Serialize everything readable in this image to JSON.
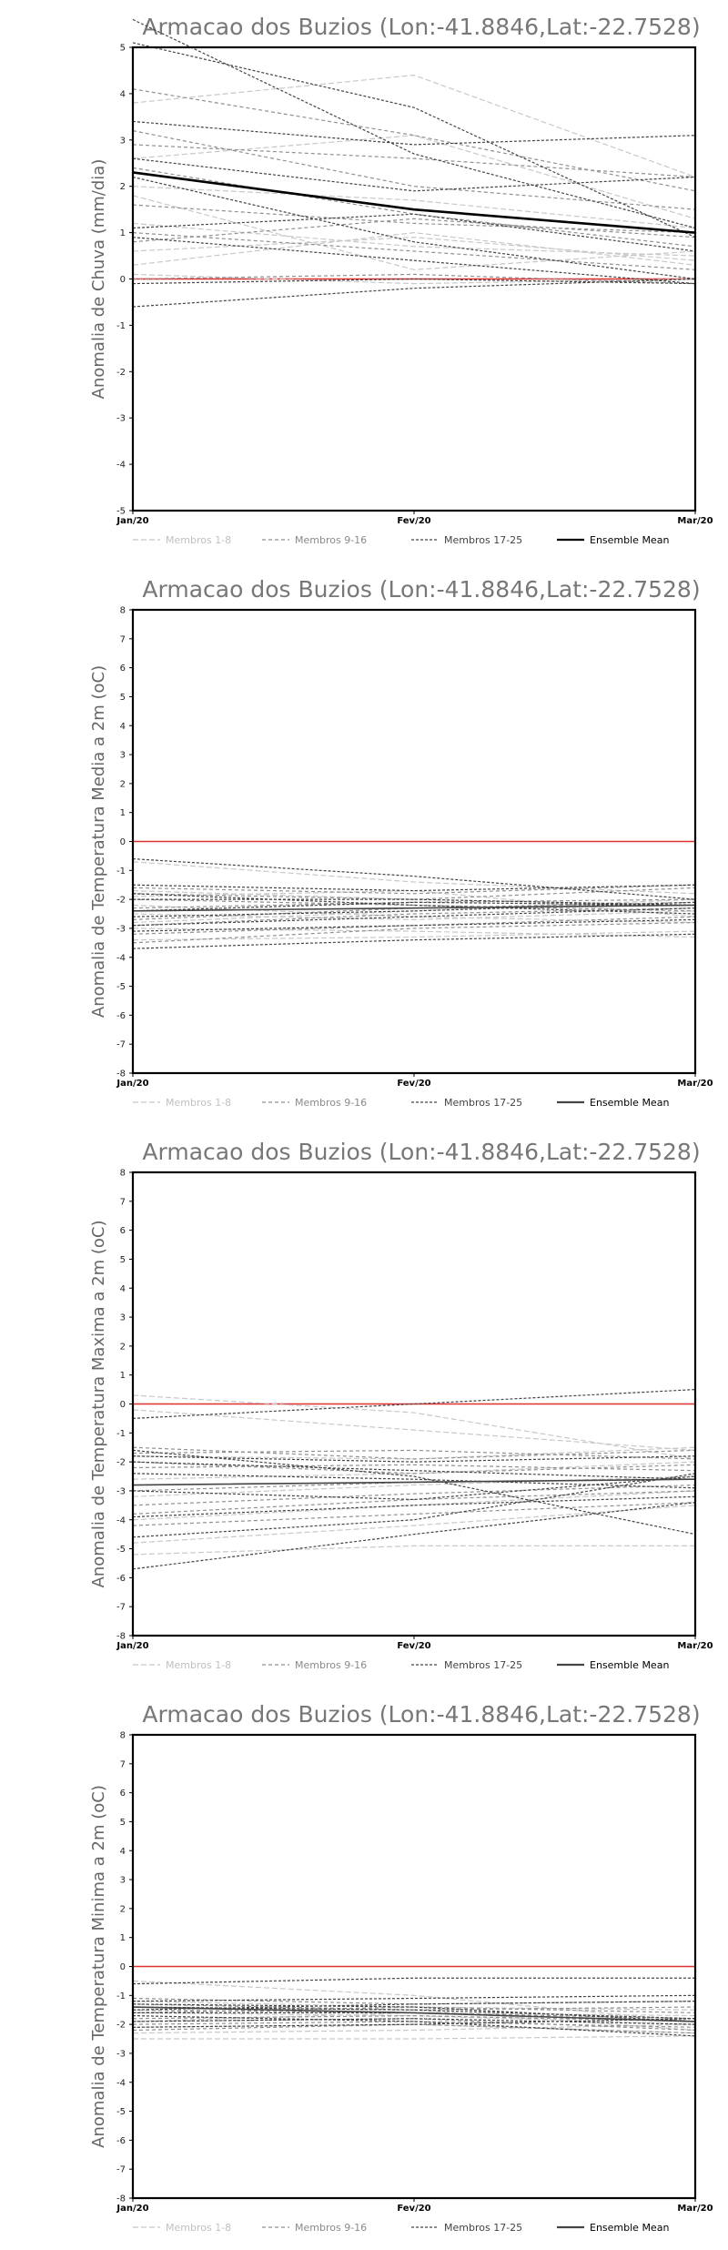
{
  "chart_data": [
    {
      "type": "line",
      "title": "Armacao dos Buzios (Lon:-41.8846,Lat:-22.7528)",
      "ylabel": "Anomalia de Chuva (mm/dia)",
      "xlabel": "",
      "categories": [
        "Jan/20",
        "Fev/20",
        "Mar/20"
      ],
      "ylim": [
        -5,
        5
      ],
      "yticks": [
        -5,
        -4,
        -3,
        -2,
        -1,
        0,
        1,
        2,
        3,
        4,
        5
      ],
      "legend": [
        "Membros 1-8",
        "Membros 9-16",
        "Membros 17-25",
        "Ensemble Mean"
      ],
      "legend_position": "bottom",
      "zero_line_color": "#e03030",
      "series_groups": [
        {
          "name": "Membros 1-8",
          "color": "#c8c8c8",
          "members": [
            [
              3.8,
              4.4,
              2.2
            ],
            [
              2.0,
              1.7,
              1.1
            ],
            [
              1.2,
              0.7,
              0.5
            ],
            [
              0.3,
              1.0,
              0.3
            ],
            [
              0.1,
              -0.1,
              0.0
            ],
            [
              2.6,
              3.1,
              1.3
            ],
            [
              1.8,
              0.2,
              0.6
            ],
            [
              0.6,
              0.9,
              0.4
            ]
          ]
        },
        {
          "name": "Membros 9-16",
          "color": "#909090",
          "members": [
            [
              4.1,
              3.1,
              1.9
            ],
            [
              3.2,
              2.0,
              1.5
            ],
            [
              2.4,
              1.4,
              0.7
            ],
            [
              1.0,
              0.6,
              0.2
            ],
            [
              0.0,
              0.1,
              -0.1
            ],
            [
              2.9,
              2.6,
              2.2
            ],
            [
              1.6,
              1.2,
              1.0
            ],
            [
              0.8,
              1.3,
              0.9
            ]
          ]
        },
        {
          "name": "Membros 17-25",
          "color": "#444444",
          "members": [
            [
              5.6,
              2.7,
              1.1
            ],
            [
              5.1,
              3.7,
              0.9
            ],
            [
              3.4,
              2.9,
              3.1
            ],
            [
              2.6,
              1.9,
              2.2
            ],
            [
              2.2,
              0.8,
              0.0
            ],
            [
              1.1,
              1.4,
              0.6
            ],
            [
              0.9,
              0.4,
              -0.1
            ],
            [
              -0.1,
              0.0,
              -0.1
            ],
            [
              -0.6,
              -0.2,
              0.0
            ]
          ]
        }
      ],
      "ensemble_mean": [
        2.3,
        1.5,
        1.0
      ],
      "ensemble_mean_color": "#000000"
    },
    {
      "type": "line",
      "title": "Armacao dos Buzios (Lon:-41.8846,Lat:-22.7528)",
      "ylabel": "Anomalia de Temperatura Media a 2m (oC)",
      "xlabel": "",
      "categories": [
        "Jan/20",
        "Fev/20",
        "Mar/20"
      ],
      "ylim": [
        -8,
        8
      ],
      "yticks": [
        -8,
        -7,
        -6,
        -5,
        -4,
        -3,
        -2,
        -1,
        0,
        1,
        2,
        3,
        4,
        5,
        6,
        7,
        8
      ],
      "legend": [
        "Membros 1-8",
        "Membros 9-16",
        "Membros 17-25",
        "Ensemble Mean"
      ],
      "legend_position": "bottom",
      "zero_line_color": "#e03030",
      "series_groups": [
        {
          "name": "Membros 1-8",
          "color": "#c8c8c8",
          "members": [
            [
              -1.9,
              -1.7,
              -2.6
            ],
            [
              -3.0,
              -3.1,
              -3.3
            ],
            [
              -2.5,
              -2.7,
              -2.4
            ],
            [
              -2.2,
              -2.6,
              -2.8
            ],
            [
              -1.7,
              -2.0,
              -2.2
            ],
            [
              -3.4,
              -3.3,
              -3.1
            ],
            [
              -0.7,
              -1.4,
              -1.8
            ],
            [
              -2.8,
              -2.4,
              -2.0
            ]
          ]
        },
        {
          "name": "Membros 9-16",
          "color": "#909090",
          "members": [
            [
              -1.6,
              -1.8,
              -1.5
            ],
            [
              -2.3,
              -2.1,
              -2.0
            ],
            [
              -2.9,
              -2.5,
              -2.3
            ],
            [
              -3.2,
              -2.9,
              -2.6
            ],
            [
              -2.0,
              -2.2,
              -2.4
            ],
            [
              -2.7,
              -2.3,
              -2.1
            ],
            [
              -1.8,
              -2.0,
              -1.6
            ],
            [
              -3.5,
              -3.0,
              -2.8
            ]
          ]
        },
        {
          "name": "Membros 17-25",
          "color": "#444444",
          "members": [
            [
              -0.6,
              -1.2,
              -2.0
            ],
            [
              -1.5,
              -1.7,
              -1.5
            ],
            [
              -2.0,
              -2.0,
              -2.2
            ],
            [
              -2.6,
              -2.4,
              -2.1
            ],
            [
              -2.9,
              -2.6,
              -2.3
            ],
            [
              -3.1,
              -2.9,
              -2.7
            ],
            [
              -3.7,
              -3.4,
              -3.2
            ],
            [
              -1.8,
              -2.2,
              -2.5
            ],
            [
              -2.4,
              -2.1,
              -2.2
            ]
          ]
        }
      ],
      "ensemble_mean": [
        -2.4,
        -2.3,
        -2.2
      ],
      "ensemble_mean_color": "#444444"
    },
    {
      "type": "line",
      "title": "Armacao dos Buzios (Lon:-41.8846,Lat:-22.7528)",
      "ylabel": "Anomalia de Temperatura Maxima a 2m (oC)",
      "xlabel": "",
      "categories": [
        "Jan/20",
        "Fev/20",
        "Mar/20"
      ],
      "ylim": [
        -8,
        8
      ],
      "yticks": [
        -8,
        -7,
        -6,
        -5,
        -4,
        -3,
        -2,
        -1,
        0,
        1,
        2,
        3,
        4,
        5,
        6,
        7,
        8
      ],
      "legend": [
        "Membros 1-8",
        "Membros 9-16",
        "Membros 17-25",
        "Ensemble Mean"
      ],
      "legend_position": "bottom",
      "zero_line_color": "#e03030",
      "series_groups": [
        {
          "name": "Membros 1-8",
          "color": "#c8c8c8",
          "members": [
            [
              0.3,
              -0.3,
              -1.9
            ],
            [
              -5.2,
              -4.9,
              -4.9
            ],
            [
              -4.8,
              -4.2,
              -3.5
            ],
            [
              -1.8,
              -1.9,
              -1.5
            ],
            [
              -3.2,
              -2.8,
              -2.5
            ],
            [
              -2.6,
              -2.4,
              -2.0
            ],
            [
              -0.2,
              -0.9,
              -1.6
            ],
            [
              -4.0,
              -3.5,
              -3.0
            ]
          ]
        },
        {
          "name": "Membros 9-16",
          "color": "#909090",
          "members": [
            [
              -1.5,
              -1.9,
              -1.6
            ],
            [
              -2.2,
              -2.1,
              -2.3
            ],
            [
              -3.0,
              -2.7,
              -2.6
            ],
            [
              -3.5,
              -3.1,
              -2.8
            ],
            [
              -4.2,
              -3.8,
              -3.4
            ],
            [
              -2.0,
              -2.4,
              -2.1
            ],
            [
              -1.7,
              -1.6,
              -1.9
            ],
            [
              -3.8,
              -3.3,
              -3.0
            ]
          ]
        },
        {
          "name": "Membros 17-25",
          "color": "#444444",
          "members": [
            [
              -0.5,
              0.0,
              0.5
            ],
            [
              -1.6,
              -2.5,
              -4.5
            ],
            [
              -5.7,
              -4.5,
              -3.4
            ],
            [
              -4.6,
              -4.0,
              -2.4
            ],
            [
              -2.0,
              -2.3,
              -2.6
            ],
            [
              -2.4,
              -2.6,
              -2.9
            ],
            [
              -3.0,
              -3.3,
              -2.5
            ],
            [
              -3.9,
              -3.5,
              -3.2
            ],
            [
              -1.8,
              -2.0,
              -1.8
            ]
          ]
        }
      ],
      "ensemble_mean": [
        -2.8,
        -2.7,
        -2.6
      ],
      "ensemble_mean_color": "#444444"
    },
    {
      "type": "line",
      "title": "Armacao dos Buzios (Lon:-41.8846,Lat:-22.7528)",
      "ylabel": "Anomalia de Temperatura Minima a 2m (oC)",
      "xlabel": "",
      "categories": [
        "Jan/20",
        "Fev/20",
        "Mar/20"
      ],
      "ylim": [
        -8,
        8
      ],
      "yticks": [
        -8,
        -7,
        -6,
        -5,
        -4,
        -3,
        -2,
        -1,
        0,
        1,
        2,
        3,
        4,
        5,
        6,
        7,
        8
      ],
      "legend": [
        "Membros 1-8",
        "Membros 9-16",
        "Membros 17-25",
        "Ensemble Mean"
      ],
      "legend_position": "bottom",
      "zero_line_color": "#e03030",
      "series_groups": [
        {
          "name": "Membros 1-8",
          "color": "#c8c8c8",
          "members": [
            [
              -0.5,
              -1.0,
              -1.9
            ],
            [
              -2.5,
              -2.5,
              -2.4
            ],
            [
              -1.2,
              -1.4,
              -1.5
            ],
            [
              -1.6,
              -1.7,
              -2.0
            ],
            [
              -2.1,
              -2.0,
              -2.3
            ],
            [
              -1.9,
              -1.6,
              -1.7
            ],
            [
              -1.4,
              -1.5,
              -2.2
            ],
            [
              -2.3,
              -2.2,
              -2.0
            ]
          ]
        },
        {
          "name": "Membros 9-16",
          "color": "#909090",
          "members": [
            [
              -1.1,
              -1.3,
              -1.2
            ],
            [
              -1.5,
              -1.6,
              -1.8
            ],
            [
              -1.8,
              -1.7,
              -1.9
            ],
            [
              -2.0,
              -1.9,
              -2.1
            ],
            [
              -1.3,
              -1.5,
              -1.4
            ],
            [
              -2.2,
              -2.0,
              -2.3
            ],
            [
              -1.6,
              -1.4,
              -1.6
            ],
            [
              -1.9,
              -1.8,
              -2.2
            ]
          ]
        },
        {
          "name": "Membros 17-25",
          "color": "#444444",
          "members": [
            [
              -0.6,
              -0.4,
              -0.4
            ],
            [
              -1.2,
              -1.1,
              -1.0
            ],
            [
              -1.4,
              -1.5,
              -1.8
            ],
            [
              -1.6,
              -1.6,
              -1.9
            ],
            [
              -1.9,
              -1.8,
              -2.0
            ],
            [
              -1.3,
              -1.4,
              -1.9
            ],
            [
              -2.1,
              -2.0,
              -1.8
            ],
            [
              -1.7,
              -1.9,
              -2.4
            ],
            [
              -1.5,
              -1.3,
              -1.2
            ]
          ]
        }
      ],
      "ensemble_mean": [
        -1.4,
        -1.6,
        -1.9
      ],
      "ensemble_mean_color": "#444444"
    }
  ]
}
